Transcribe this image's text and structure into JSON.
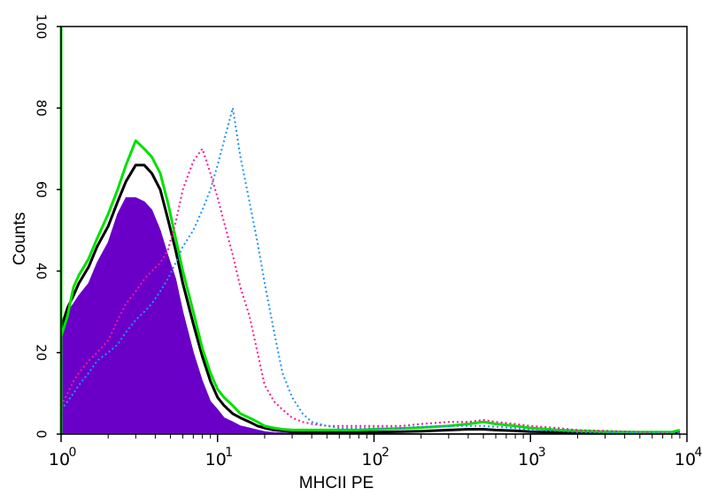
{
  "chart_data": {
    "type": "area",
    "xlabel": "MHCII PE",
    "ylabel": "Counts",
    "x_scale": "log",
    "xlim": [
      1,
      10000
    ],
    "ylim": [
      0,
      100
    ],
    "x_ticks": [
      {
        "base": "10",
        "exp": "0",
        "value": 1
      },
      {
        "base": "10",
        "exp": "1",
        "value": 10
      },
      {
        "base": "10",
        "exp": "2",
        "value": 100
      },
      {
        "base": "10",
        "exp": "3",
        "value": 1000
      },
      {
        "base": "10",
        "exp": "4",
        "value": 10000
      }
    ],
    "y_ticks": [
      "0",
      "20",
      "40",
      "60",
      "80",
      "100"
    ],
    "grid": false,
    "x": [
      1.0,
      1.1,
      1.2,
      1.3,
      1.5,
      1.7,
      2.0,
      2.3,
      2.6,
      3.0,
      3.4,
      3.8,
      4.3,
      4.8,
      5.4,
      6.0,
      7.0,
      8.0,
      9.0,
      10,
      11,
      12.5,
      14,
      16,
      18,
      20,
      23,
      26,
      30,
      35,
      40,
      50,
      60,
      80,
      100,
      150,
      200,
      300,
      400,
      500,
      600,
      800,
      1000,
      1500,
      2000,
      3000,
      5000,
      8000,
      9000
    ],
    "series": [
      {
        "color": "#6a00c8",
        "style": "filled",
        "values": [
          25,
          30,
          32,
          34,
          37,
          42,
          47,
          54,
          58,
          58,
          57,
          55,
          50,
          44,
          38,
          30,
          20,
          13,
          8,
          6,
          4,
          3,
          2,
          1.5,
          1,
          0.6,
          0.4,
          0.3,
          0.2,
          0.2,
          0.1,
          0.1,
          0.1,
          0.1,
          0.1,
          0.1,
          0.1,
          0.1,
          0.1,
          0.1,
          0.1,
          0.1,
          0.1,
          0.1,
          0.1,
          0.1,
          0.1,
          0.1,
          0.1
        ]
      },
      {
        "color": "#000000",
        "style": "solid",
        "values": [
          26,
          31,
          34,
          37,
          41,
          46,
          51,
          57,
          62,
          66,
          66,
          64,
          60,
          53,
          45,
          37,
          27,
          19,
          13,
          9,
          7,
          5,
          4,
          3,
          2,
          1.5,
          1,
          0.8,
          0.6,
          0.5,
          0.5,
          0.5,
          0.5,
          0.5,
          0.5,
          0.6,
          0.7,
          1,
          1.2,
          1.2,
          1,
          0.8,
          0.6,
          0.5,
          0.4,
          0.3,
          0.3,
          0.3,
          0.3
        ]
      },
      {
        "color": "#00e000",
        "style": "solid",
        "values": [
          24,
          29,
          36,
          39,
          43,
          48,
          54,
          60,
          66,
          72,
          70,
          68,
          64,
          57,
          48,
          40,
          30,
          21,
          15,
          11,
          9,
          7,
          5,
          4,
          3,
          2,
          1.5,
          1.2,
          1,
          1,
          1,
          1,
          1,
          1,
          1.2,
          1.4,
          1.6,
          2,
          2.5,
          3,
          2.5,
          2,
          1.5,
          1,
          0.8,
          0.6,
          0.5,
          0.5,
          1
        ]
      },
      {
        "color": "#ff1493",
        "style": "dotted",
        "values": [
          7,
          10,
          13,
          15,
          18,
          20,
          23,
          28,
          32,
          35,
          38,
          40,
          42,
          45,
          52,
          60,
          67,
          70,
          64,
          58,
          52,
          44,
          36,
          29,
          20,
          12,
          8,
          6,
          4,
          3,
          2.5,
          2,
          2,
          2,
          2,
          2,
          2.5,
          3,
          3,
          3.5,
          3,
          2.5,
          2,
          1.5,
          1,
          0.8,
          0.5,
          0.3,
          0.3
        ]
      },
      {
        "color": "#1e90ff",
        "style": "dotted",
        "values": [
          6,
          8,
          10,
          12,
          15,
          18,
          20,
          22,
          25,
          28,
          30,
          32,
          35,
          38,
          42,
          46,
          50,
          55,
          60,
          66,
          72,
          80,
          68,
          57,
          47,
          37,
          25,
          15,
          9,
          5,
          3,
          2,
          1.5,
          1.5,
          1.5,
          1.5,
          1.8,
          2,
          2,
          2,
          1.8,
          1.5,
          1,
          0.8,
          0.5,
          0.4,
          0.3,
          0.2,
          0.2
        ]
      }
    ]
  }
}
